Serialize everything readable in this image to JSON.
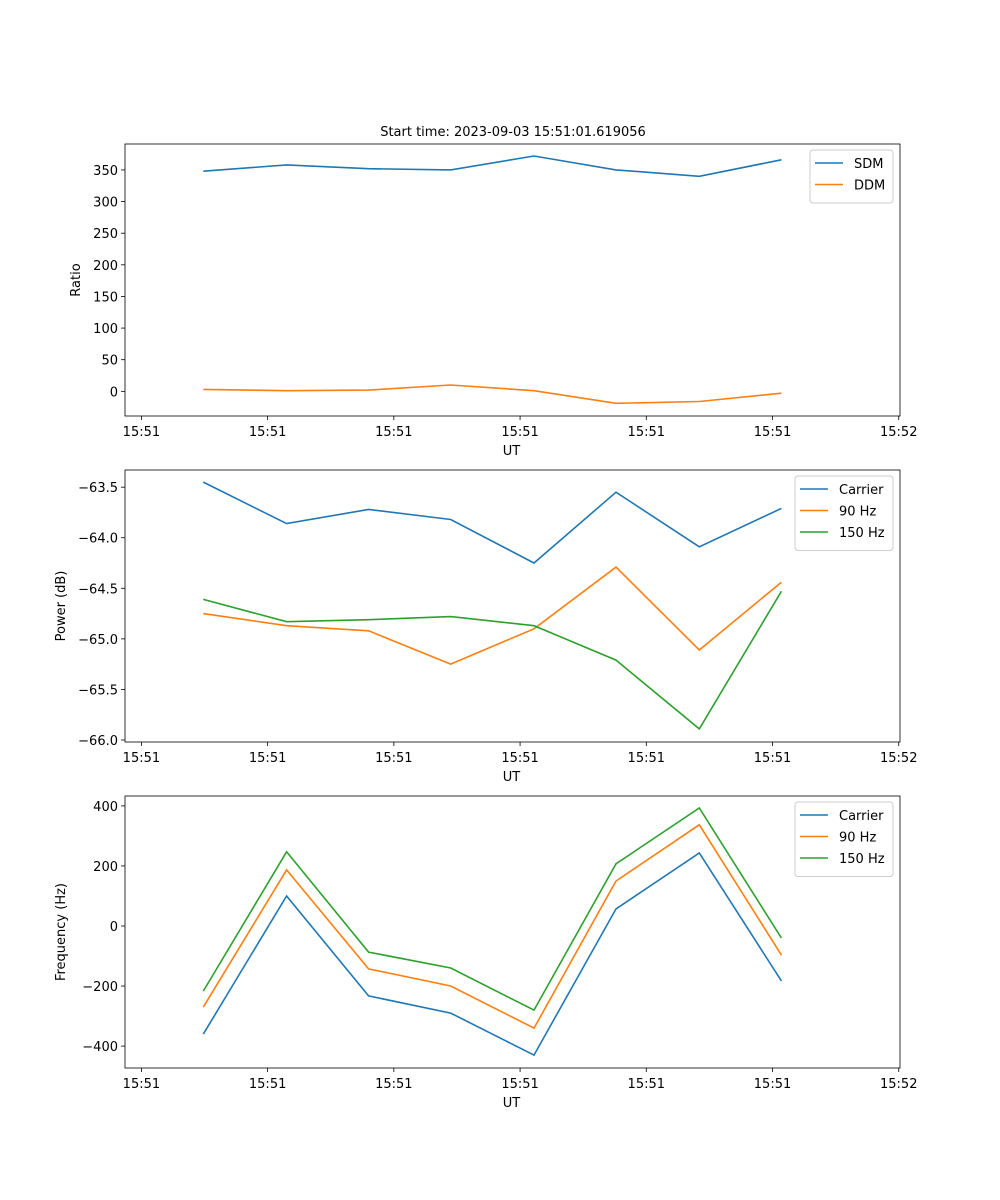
{
  "title": "Start time: 2023-09-03 15:51:01.619056",
  "colors": {
    "blue": "#1f77b4",
    "orange": "#ff7f0e",
    "green": "#2ca02c"
  },
  "chart_data": [
    {
      "type": "line",
      "xlabel": "UT",
      "ylabel": "Ratio",
      "x_unit": "seconds after 15:51:00",
      "x": [
        4.9,
        11.5,
        18.0,
        24.5,
        31.1,
        37.6,
        44.2,
        50.7
      ],
      "xlim": [
        -1.3,
        60.1
      ],
      "xticks": [
        0,
        10,
        20,
        30,
        40,
        50,
        60
      ],
      "xtick_labels": [
        "15:51",
        "15:51",
        "15:51",
        "15:51",
        "15:51",
        "15:51",
        "15:52"
      ],
      "ylim": [
        -39,
        391
      ],
      "yticks": [
        0,
        50,
        100,
        150,
        200,
        250,
        300,
        350
      ],
      "ytick_labels": [
        "0",
        "50",
        "100",
        "150",
        "200",
        "250",
        "300",
        "350"
      ],
      "legend_position": "top-right",
      "series": [
        {
          "name": "SDM",
          "color": "#1f77b4",
          "values": [
            348,
            358,
            352,
            350,
            372,
            350,
            340,
            366
          ]
        },
        {
          "name": "DDM",
          "color": "#ff7f0e",
          "values": [
            3,
            1,
            2,
            10,
            1,
            -19,
            -16,
            -3
          ]
        }
      ]
    },
    {
      "type": "line",
      "xlabel": "UT",
      "ylabel": "Power (dB)",
      "x_unit": "seconds after 15:51:00",
      "x": [
        4.9,
        11.5,
        18.0,
        24.5,
        31.1,
        37.6,
        44.2,
        50.7
      ],
      "xlim": [
        -1.3,
        60.1
      ],
      "xticks": [
        0,
        10,
        20,
        30,
        40,
        50,
        60
      ],
      "xtick_labels": [
        "15:51",
        "15:51",
        "15:51",
        "15:51",
        "15:51",
        "15:51",
        "15:52"
      ],
      "ylim": [
        -66.02,
        -63.33
      ],
      "yticks": [
        -63.5,
        -64.0,
        -64.5,
        -65.0,
        -65.5,
        -66.0
      ],
      "ytick_labels": [
        "−63.5",
        "−64.0",
        "−64.5",
        "−65.0",
        "−65.5",
        "−66.0"
      ],
      "legend_position": "top-right",
      "series": [
        {
          "name": "Carrier",
          "color": "#1f77b4",
          "values": [
            -63.45,
            -63.86,
            -63.72,
            -63.82,
            -64.25,
            -63.55,
            -64.09,
            -63.71
          ]
        },
        {
          "name": "90 Hz",
          "color": "#ff7f0e",
          "values": [
            -64.75,
            -64.87,
            -64.92,
            -65.25,
            -64.9,
            -64.29,
            -65.11,
            -64.44
          ]
        },
        {
          "name": "150 Hz",
          "color": "#2ca02c",
          "values": [
            -64.61,
            -64.83,
            -64.81,
            -64.78,
            -64.87,
            -65.21,
            -65.89,
            -64.53
          ]
        }
      ]
    },
    {
      "type": "line",
      "xlabel": "UT",
      "ylabel": "Frequency (Hz)",
      "x_unit": "seconds after 15:51:00",
      "x": [
        4.9,
        11.5,
        18.0,
        24.5,
        31.1,
        37.6,
        44.2,
        50.7
      ],
      "xlim": [
        -1.3,
        60.1
      ],
      "xticks": [
        0,
        10,
        20,
        30,
        40,
        50,
        60
      ],
      "xtick_labels": [
        "15:51",
        "15:51",
        "15:51",
        "15:51",
        "15:51",
        "15:51",
        "15:52"
      ],
      "ylim": [
        -473,
        433
      ],
      "yticks": [
        -400,
        -200,
        0,
        200,
        400
      ],
      "ytick_labels": [
        "−400",
        "−200",
        "0",
        "200",
        "400"
      ],
      "legend_position": "top-right",
      "series": [
        {
          "name": "Carrier",
          "color": "#1f77b4",
          "values": [
            -360,
            100,
            -233,
            -290,
            -430,
            57,
            243,
            -183
          ]
        },
        {
          "name": "90 Hz",
          "color": "#ff7f0e",
          "values": [
            -270,
            187,
            -143,
            -200,
            -340,
            150,
            337,
            -97
          ]
        },
        {
          "name": "150 Hz",
          "color": "#2ca02c",
          "values": [
            -217,
            247,
            -87,
            -140,
            -280,
            207,
            393,
            -40
          ]
        }
      ]
    }
  ]
}
